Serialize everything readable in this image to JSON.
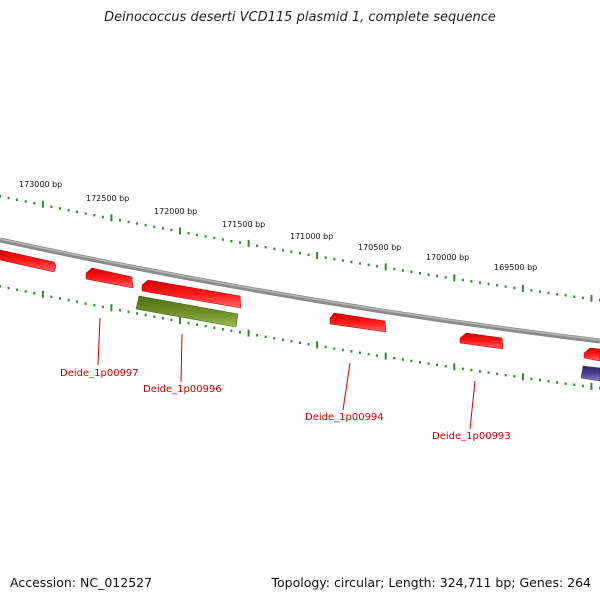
{
  "title": "Deinococcus deserti VCD115 plasmid 1, complete sequence",
  "footer": {
    "accession": "Accession: NC_012527",
    "summary": "Topology: circular; Length: 324,711 bp; Genes: 264"
  },
  "ticks": [
    {
      "label": "173000 bp"
    },
    {
      "label": "172500 bp"
    },
    {
      "label": "172000 bp"
    },
    {
      "label": "171500 bp"
    },
    {
      "label": "171000 bp"
    },
    {
      "label": "170500 bp"
    },
    {
      "label": "170000 bp"
    },
    {
      "label": "169500 bp"
    }
  ],
  "genes": [
    {
      "label": "Deide_1p00997"
    },
    {
      "label": "Deide_1p00996"
    },
    {
      "label": "Deide_1p00994"
    },
    {
      "label": "Deide_1p00993"
    }
  ],
  "colors": {
    "gene_forward": "#ee1111",
    "gene_label": "#cc0000",
    "gene_other": "#6b8e23",
    "gene_partial": "#4b3f8f",
    "backbone": "#8a8a8a",
    "tick": "#2e8b2e"
  }
}
